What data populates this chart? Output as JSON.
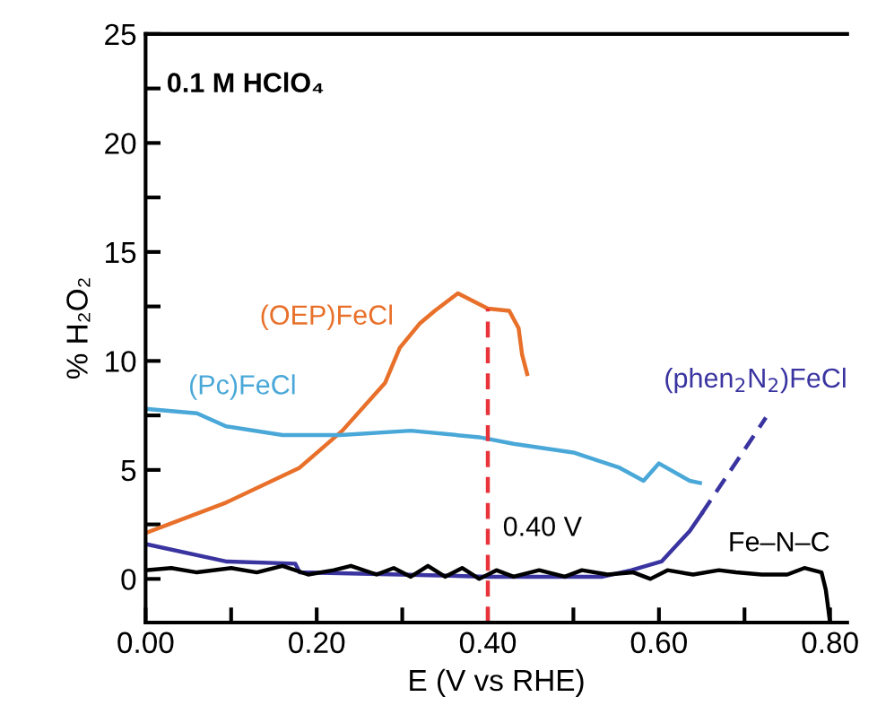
{
  "chart_data": {
    "type": "line",
    "title": "0.1 M HClO₄",
    "xlabel": "E (V vs RHE)",
    "ylabel": "% H₂O₂",
    "xlim": [
      0,
      0.82
    ],
    "ylim": [
      -2,
      25
    ],
    "xticks": [
      {
        "value": 0,
        "label": "0.00"
      },
      {
        "value": 0.1,
        "label": null
      },
      {
        "value": 0.2,
        "label": "0.20"
      },
      {
        "value": 0.3,
        "label": null
      },
      {
        "value": 0.4,
        "label": "0.40"
      },
      {
        "value": 0.5,
        "label": null
      },
      {
        "value": 0.6,
        "label": "0.60"
      },
      {
        "value": 0.7,
        "label": null
      },
      {
        "value": 0.8,
        "label": "0.80"
      }
    ],
    "yticks": [
      0,
      {
        "value": 2.5,
        "label": null
      },
      5,
      {
        "value": 7.5,
        "label": null
      },
      10,
      {
        "value": 12.5,
        "label": null
      },
      15,
      {
        "value": 17.5,
        "label": null
      },
      20,
      {
        "value": 22.5,
        "label": null
      },
      25
    ],
    "grid": false,
    "legend": false,
    "marker": "none",
    "series": [
      {
        "name": "(OEP)FeCl",
        "color": "#e8702a",
        "line_style": "solid",
        "x": [
          0.0,
          0.094,
          0.18,
          0.23,
          0.28,
          0.297,
          0.32,
          0.338,
          0.365,
          0.4,
          0.425,
          0.436,
          0.44,
          0.446
        ],
        "values": [
          2.1,
          3.5,
          5.1,
          6.8,
          9.0,
          10.6,
          11.7,
          12.3,
          13.1,
          12.4,
          12.3,
          11.5,
          10.3,
          9.4
        ]
      },
      {
        "name": "(Pc)FeCl",
        "color": "#4aa8d8",
        "line_style": "solid",
        "x": [
          0.0,
          0.06,
          0.094,
          0.16,
          0.228,
          0.31,
          0.39,
          0.43,
          0.5,
          0.554,
          0.582,
          0.6,
          0.636,
          0.648
        ],
        "values": [
          7.8,
          7.6,
          7.0,
          6.6,
          6.6,
          6.8,
          6.5,
          6.2,
          5.8,
          5.1,
          4.5,
          5.3,
          4.5,
          4.4
        ]
      },
      {
        "name": "(phen$_{2}$N$_{2}$)FeCl",
        "color": "#3a34a0",
        "line_style": "solid",
        "x": [
          0.0,
          0.094,
          0.175,
          0.18,
          0.297,
          0.4,
          0.534,
          0.568,
          0.603,
          0.636,
          0.65
        ],
        "values": [
          1.6,
          0.8,
          0.7,
          0.3,
          0.2,
          0.1,
          0.1,
          0.4,
          0.8,
          2.2,
          3.0
        ]
      },
      {
        "color": "#3a34a0",
        "line_style": "dashed",
        "x": [
          0.65,
          0.725
        ],
        "values": [
          3.0,
          7.4
        ]
      },
      {
        "name": "Fe–N–C",
        "color": "#000000",
        "line_style": "solid",
        "x": [
          0.0,
          0.03,
          0.06,
          0.1,
          0.13,
          0.16,
          0.19,
          0.22,
          0.24,
          0.27,
          0.29,
          0.31,
          0.33,
          0.35,
          0.37,
          0.39,
          0.41,
          0.43,
          0.46,
          0.49,
          0.51,
          0.54,
          0.57,
          0.59,
          0.61,
          0.64,
          0.67,
          0.69,
          0.72,
          0.75,
          0.77,
          0.79,
          0.795,
          0.8
        ],
        "values": [
          0.4,
          0.5,
          0.3,
          0.5,
          0.3,
          0.6,
          0.2,
          0.4,
          0.6,
          0.2,
          0.5,
          0.1,
          0.6,
          0.1,
          0.5,
          0.0,
          0.4,
          0.1,
          0.4,
          0.1,
          0.4,
          0.2,
          0.3,
          0.0,
          0.4,
          0.2,
          0.4,
          0.3,
          0.2,
          0.2,
          0.5,
          0.3,
          -0.5,
          -2
        ]
      },
      {
        "color": "#e8333a",
        "line_style": "dashed",
        "x": [
          0.4,
          0.4
        ],
        "values": [
          -2,
          12.4
        ]
      }
    ],
    "annotations": [
      {
        "text": "0.40 V",
        "x": 0.4,
        "y": 2.3
      }
    ]
  }
}
